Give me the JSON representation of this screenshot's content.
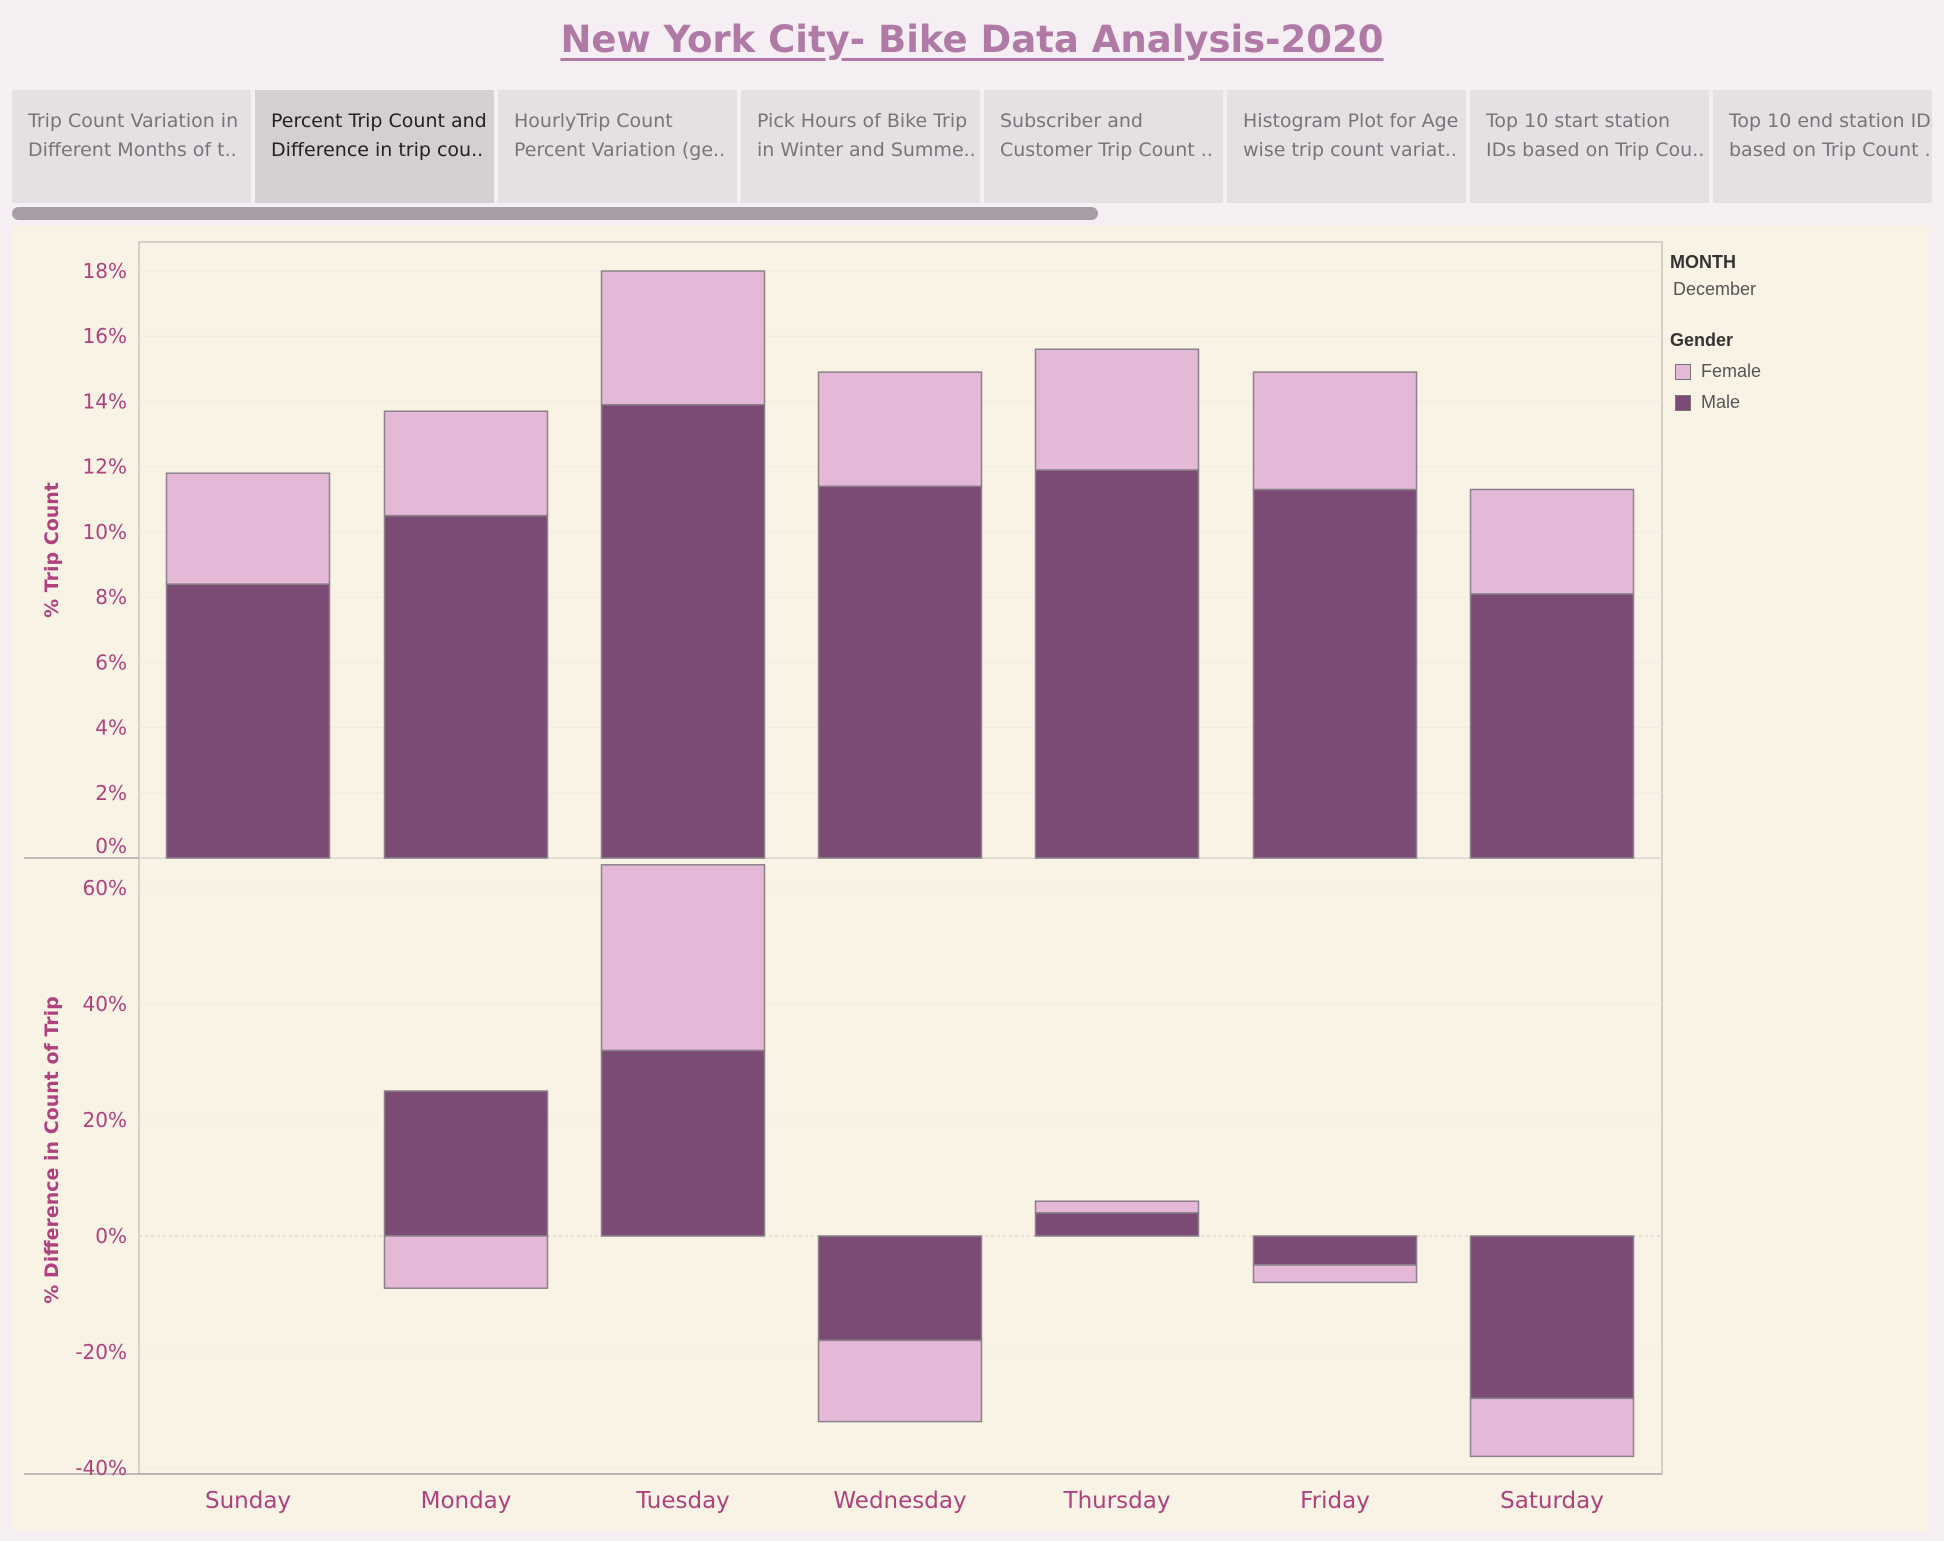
{
  "title": "New York City- Bike Data Analysis-2020",
  "tabs": [
    {
      "label": "Trip Count Variation in\nDifferent Months of t..",
      "active": false
    },
    {
      "label": "Percent Trip Count and\nDifference in trip cou..",
      "active": true
    },
    {
      "label": "HourlyTrip Count\nPercent Variation (ge..",
      "active": false
    },
    {
      "label": "Pick Hours of Bike Trip\nin Winter and Summe..",
      "active": false
    },
    {
      "label": "Subscriber and\nCustomer Trip Count ..",
      "active": false
    },
    {
      "label": "Histogram Plot for Age\nwise trip count variat..",
      "active": false
    },
    {
      "label": "Top 10 start station\nIDs based on Trip Cou..",
      "active": false
    },
    {
      "label": "Top 10 end station IDs\nbased on Trip Count ..",
      "active": false
    }
  ],
  "legend": {
    "month_title": "MONTH",
    "month_value": "December",
    "gender_title": "Gender",
    "items": [
      {
        "label": "Female",
        "color": "#e5b8d7"
      },
      {
        "label": "Male",
        "color": "#7b4b76"
      }
    ]
  },
  "colors": {
    "female": "#e5b8d7",
    "male": "#7b4b76",
    "axis_text": "#b0417f",
    "background": "#f9f3e6"
  },
  "chart_data": [
    {
      "type": "bar",
      "stacked": true,
      "ylabel": "% Trip Count",
      "categories": [
        "Sunday",
        "Monday",
        "Tuesday",
        "Wednesday",
        "Thursday",
        "Friday",
        "Saturday"
      ],
      "yticks": [
        "18%",
        "16%",
        "14%",
        "12%",
        "10%",
        "8%",
        "6%",
        "4%",
        "2%",
        "0%"
      ],
      "ylim": [
        0,
        18
      ],
      "series": [
        {
          "name": "Male",
          "values": [
            8.4,
            10.5,
            13.9,
            11.4,
            11.9,
            11.3,
            8.1
          ]
        },
        {
          "name": "Female",
          "values": [
            3.4,
            3.2,
            4.1,
            3.5,
            3.7,
            3.6,
            3.2
          ]
        }
      ]
    },
    {
      "type": "bar",
      "stacked": true,
      "ylabel": "% Difference in Count of Trip",
      "categories": [
        "Sunday",
        "Monday",
        "Tuesday",
        "Wednesday",
        "Thursday",
        "Friday",
        "Saturday"
      ],
      "yticks": [
        "60%",
        "40%",
        "20%",
        "0%",
        "-20%",
        "-40%"
      ],
      "ylim": [
        -43,
        63
      ],
      "series": [
        {
          "name": "Male",
          "values": [
            0,
            25,
            32,
            -18,
            4,
            -5,
            -28
          ]
        },
        {
          "name": "Female",
          "values": [
            0,
            -9,
            32,
            -14,
            2,
            -3,
            -10
          ]
        }
      ]
    }
  ]
}
